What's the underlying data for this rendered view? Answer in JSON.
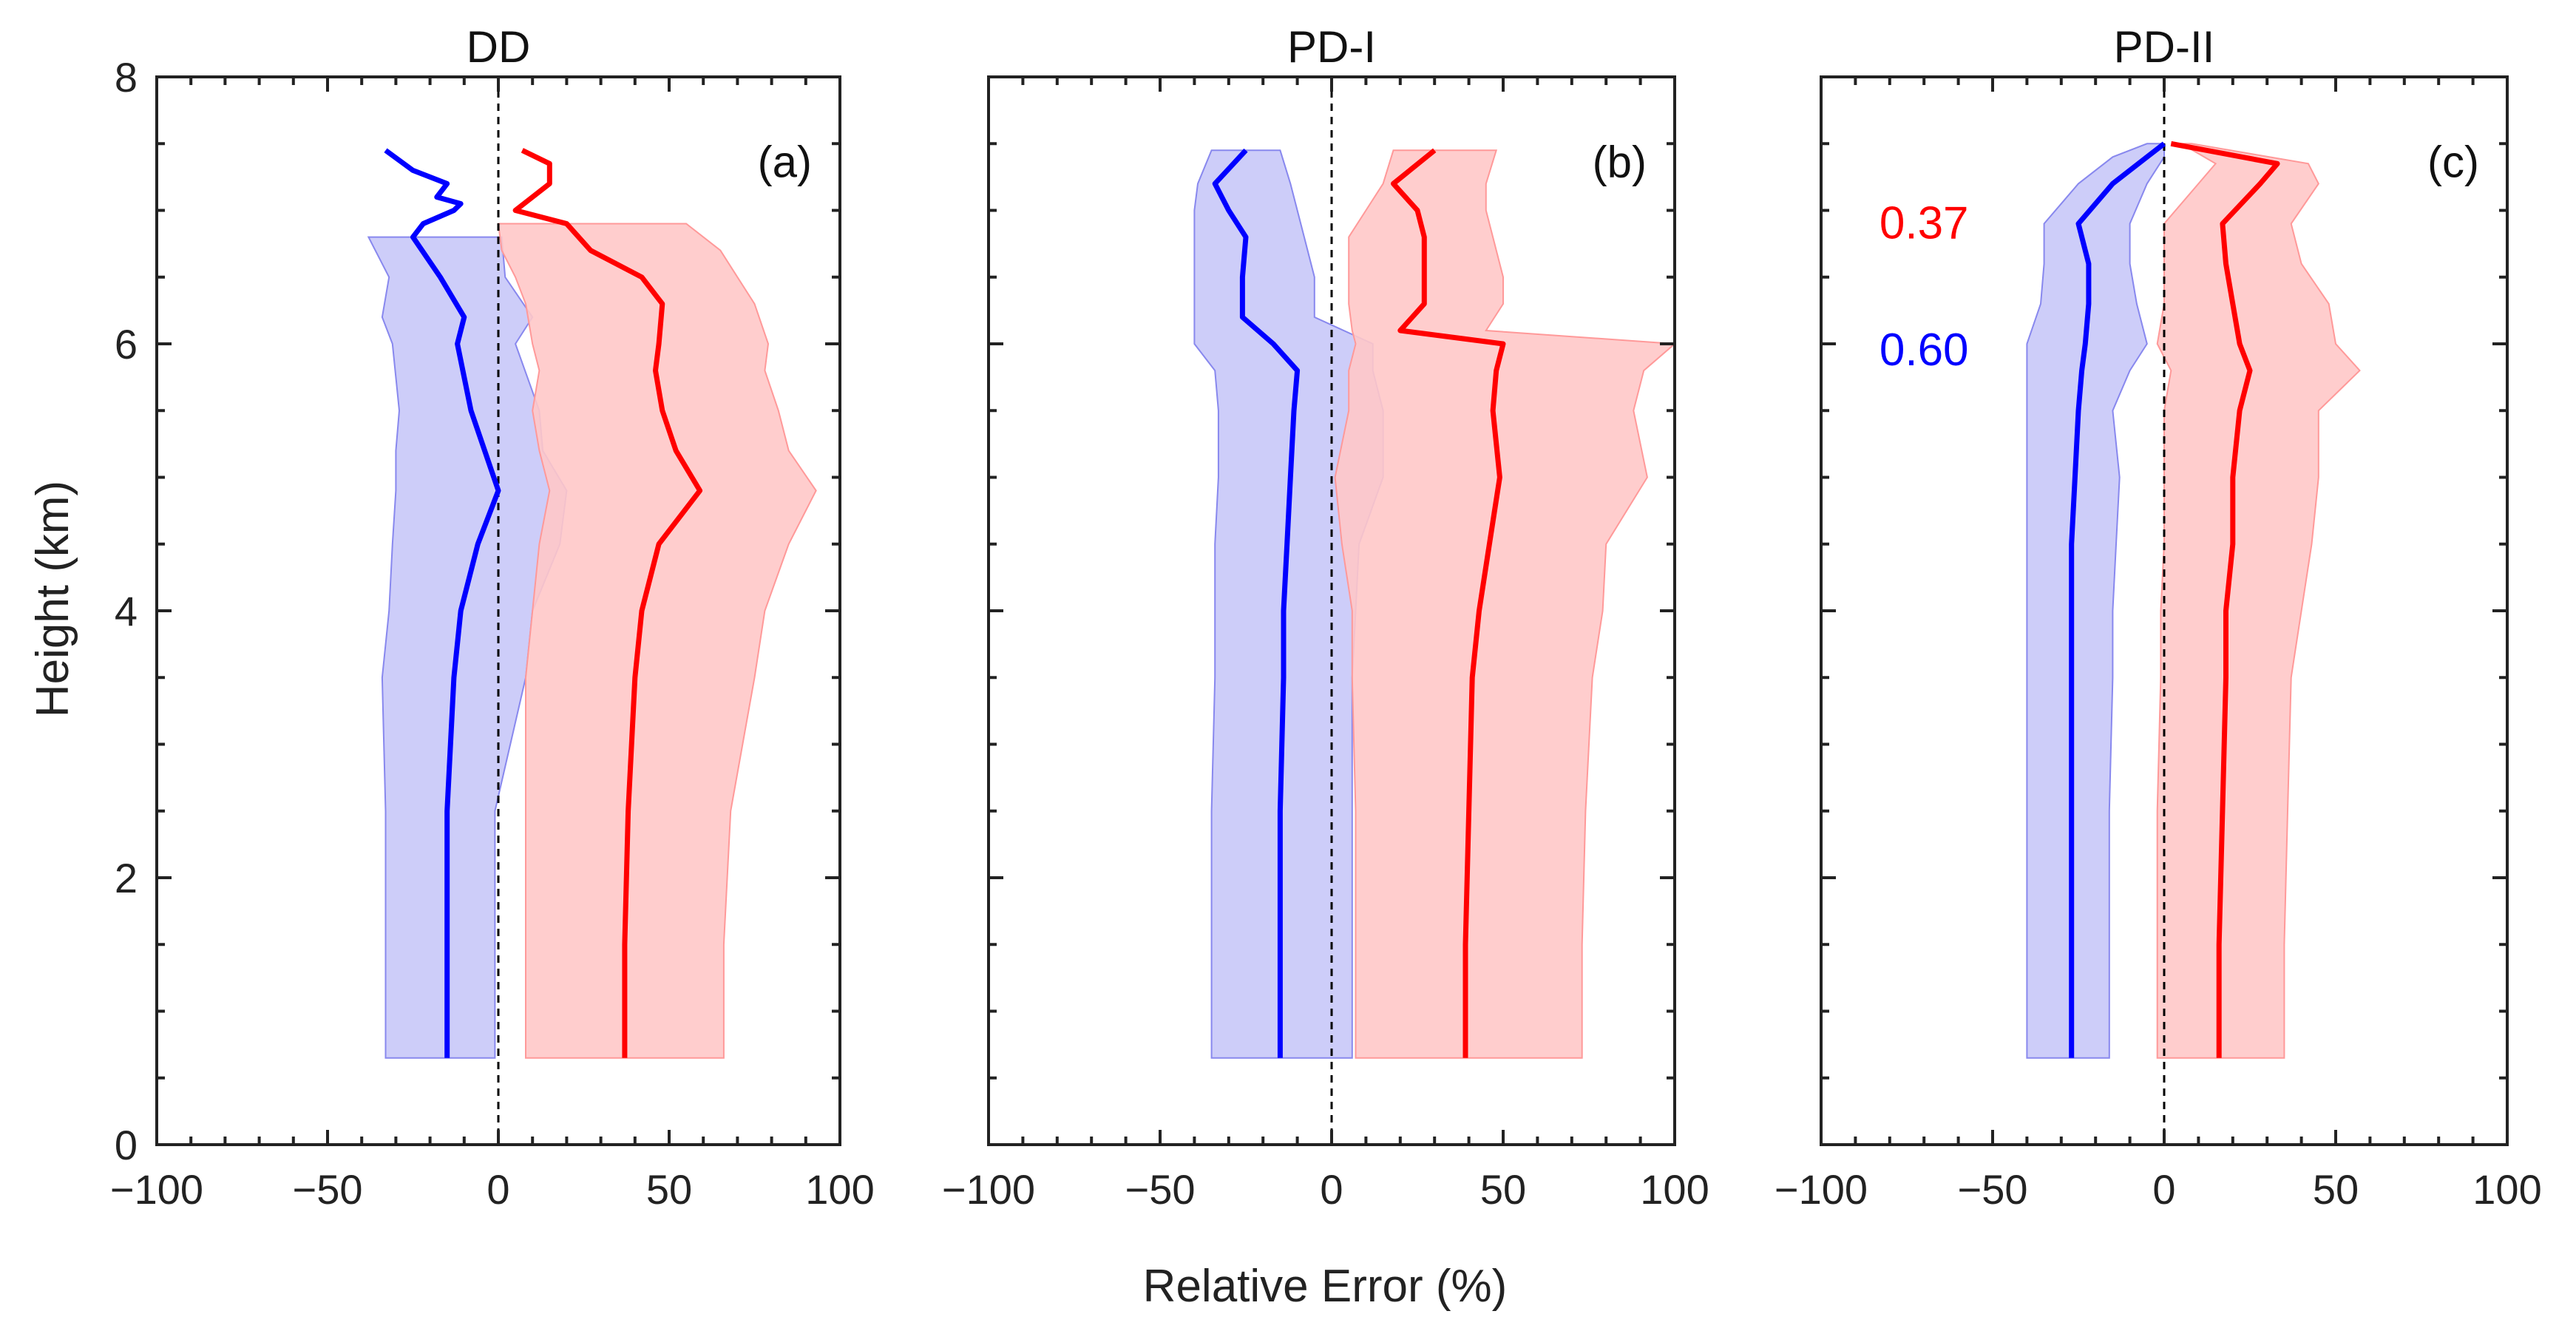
{
  "figure": {
    "xlabel": "Relative Error (%)",
    "ylabel": "Height (km)",
    "colors": {
      "blue": "#0000ff",
      "red": "#ff0000",
      "blue_fill": "#c8c8f8",
      "red_fill": "#ffc8c8",
      "axis": "#222222"
    }
  },
  "chart_data": [
    {
      "type": "line",
      "title": "DD",
      "panel_label": "(a)",
      "xlabel": "Relative Error (%)",
      "ylabel": "Height (km)",
      "xlim": [
        -100,
        100
      ],
      "ylim": [
        0,
        8
      ],
      "xticks": [
        -100,
        -50,
        0,
        50,
        100
      ],
      "xtick_labels": [
        "−100",
        "−50",
        "0",
        "50",
        "100"
      ],
      "yticks": [
        0,
        2,
        4,
        6,
        8
      ],
      "ytick_labels": [
        "0",
        "2",
        "4",
        "6",
        "8"
      ],
      "reference_line_x": 0,
      "annotations": [],
      "series": [
        {
          "name": "blue",
          "color": "#0000ff",
          "height": [
            0.65,
            1.5,
            2.5,
            3.5,
            4.0,
            4.5,
            4.9,
            5.2,
            5.5,
            6.0,
            6.2,
            6.5,
            6.8,
            6.9,
            7.0,
            7.05,
            7.1,
            7.2,
            7.3,
            7.45
          ],
          "mean": [
            -15,
            -15,
            -15,
            -13,
            -11,
            -6,
            0,
            -4,
            -8,
            -12,
            -10,
            -17,
            -25,
            -22,
            -13,
            -11,
            -18,
            -15,
            -25,
            -33
          ],
          "lower": [
            -33,
            -33,
            -33,
            -34,
            -32,
            -31,
            -30,
            -30,
            -29,
            -31,
            -34,
            -32,
            -38,
            null,
            null,
            null,
            null,
            null,
            null,
            null
          ],
          "upper": [
            -1,
            -1,
            -1,
            8,
            10,
            18,
            20,
            13,
            12,
            5,
            10,
            2,
            1,
            null,
            null,
            null,
            null,
            null,
            null,
            null
          ]
        },
        {
          "name": "red",
          "color": "#ff0000",
          "height": [
            0.65,
            1.5,
            2.5,
            3.5,
            4.0,
            4.5,
            4.9,
            5.2,
            5.5,
            5.8,
            6.0,
            6.3,
            6.5,
            6.7,
            6.9,
            7.0,
            7.2,
            7.35,
            7.45
          ],
          "mean": [
            37,
            37,
            38,
            40,
            42,
            47,
            59,
            52,
            48,
            46,
            47,
            48,
            42,
            27,
            20,
            5,
            15,
            15,
            7
          ],
          "lower": [
            8,
            8,
            8,
            8,
            10,
            12,
            15,
            12,
            10,
            12,
            10,
            8,
            5,
            1,
            0,
            null,
            null,
            null,
            null
          ],
          "upper": [
            66,
            66,
            68,
            75,
            78,
            85,
            93,
            85,
            82,
            78,
            79,
            75,
            70,
            65,
            55,
            null,
            null,
            null,
            null
          ]
        }
      ]
    },
    {
      "type": "line",
      "title": "PD-I",
      "panel_label": "(b)",
      "xlabel": "Relative Error (%)",
      "ylabel": "Height (km)",
      "xlim": [
        -100,
        100
      ],
      "ylim": [
        0,
        8
      ],
      "xticks": [
        -100,
        -50,
        0,
        50,
        100
      ],
      "xtick_labels": [
        "−100",
        "−50",
        "0",
        "50",
        "100"
      ],
      "yticks": [
        0,
        2,
        4,
        6,
        8
      ],
      "ytick_labels": [
        "0",
        "2",
        "4",
        "6",
        "8"
      ],
      "reference_line_x": 0,
      "annotations": [],
      "series": [
        {
          "name": "blue",
          "color": "#0000ff",
          "height": [
            0.65,
            1.5,
            2.5,
            3.5,
            4.0,
            4.5,
            5.0,
            5.5,
            5.8,
            6.0,
            6.2,
            6.5,
            6.8,
            7.0,
            7.2,
            7.45
          ],
          "mean": [
            -15,
            -15,
            -15,
            -14,
            -14,
            -13,
            -12,
            -11,
            -10,
            -17,
            -26,
            -26,
            -25,
            -30,
            -34,
            -25
          ],
          "lower": [
            -35,
            -35,
            -35,
            -34,
            -34,
            -34,
            -33,
            -33,
            -34,
            -40,
            -40,
            -40,
            -40,
            -40,
            -39,
            -35
          ],
          "upper": [
            6,
            6,
            6,
            6,
            7,
            8,
            15,
            15,
            12,
            12,
            -5,
            -5,
            -8,
            -10,
            -12,
            -15
          ]
        },
        {
          "name": "red",
          "color": "#ff0000",
          "height": [
            0.65,
            1.5,
            2.5,
            3.5,
            4.0,
            4.5,
            5.0,
            5.5,
            5.8,
            6.0,
            6.1,
            6.3,
            6.5,
            6.8,
            7.0,
            7.2,
            7.45
          ],
          "mean": [
            39,
            39,
            40,
            41,
            43,
            46,
            49,
            47,
            48,
            50,
            20,
            27,
            27,
            27,
            25,
            18,
            30
          ],
          "lower": [
            7,
            7,
            7,
            6,
            6,
            3,
            1,
            5,
            5,
            7,
            6,
            5,
            5,
            5,
            10,
            15,
            18
          ],
          "upper": [
            73,
            73,
            74,
            76,
            79,
            80,
            92,
            88,
            91,
            100,
            45,
            50,
            50,
            47,
            45,
            45,
            48
          ]
        }
      ]
    },
    {
      "type": "line",
      "title": "PD-II",
      "panel_label": "(c)",
      "xlabel": "Relative Error (%)",
      "ylabel": "Height (km)",
      "xlim": [
        -100,
        100
      ],
      "ylim": [
        0,
        8
      ],
      "xticks": [
        -100,
        -50,
        0,
        50,
        100
      ],
      "xtick_labels": [
        "−100",
        "−50",
        "0",
        "50",
        "100"
      ],
      "yticks": [
        0,
        2,
        4,
        6,
        8
      ],
      "ytick_labels": [
        "0",
        "2",
        "4",
        "6",
        "8"
      ],
      "reference_line_x": 0,
      "annotations": [
        {
          "text": "0.37",
          "color": "#ff0000",
          "x": -70,
          "y": 6.9
        },
        {
          "text": "0.60",
          "color": "#0000ff",
          "x": -70,
          "y": 5.95
        }
      ],
      "series": [
        {
          "name": "blue",
          "color": "#0000ff",
          "height": [
            0.65,
            1.5,
            2.5,
            3.5,
            4.0,
            4.5,
            5.0,
            5.5,
            5.8,
            6.0,
            6.3,
            6.6,
            6.9,
            7.2,
            7.4,
            7.5
          ],
          "mean": [
            -27,
            -27,
            -27,
            -27,
            -27,
            -27,
            -26,
            -25,
            -24,
            -23,
            -22,
            -22,
            -25,
            -15,
            -5,
            0
          ],
          "lower": [
            -40,
            -40,
            -40,
            -40,
            -40,
            -40,
            -40,
            -40,
            -40,
            -40,
            -36,
            -35,
            -35,
            -25,
            -15,
            -5
          ],
          "upper": [
            -16,
            -16,
            -16,
            -15,
            -15,
            -14,
            -13,
            -15,
            -10,
            -5,
            -8,
            -10,
            -10,
            -5,
            0,
            0
          ]
        },
        {
          "name": "red",
          "color": "#ff0000",
          "height": [
            0.65,
            1.5,
            2.5,
            3.5,
            4.0,
            4.5,
            5.0,
            5.5,
            5.8,
            6.0,
            6.3,
            6.6,
            6.9,
            7.2,
            7.35,
            7.5
          ],
          "mean": [
            16,
            16,
            17,
            18,
            18,
            20,
            20,
            22,
            25,
            22,
            20,
            18,
            17,
            28,
            33,
            2
          ],
          "lower": [
            -2,
            -2,
            -2,
            -1,
            -1,
            0,
            0,
            0,
            2,
            -2,
            0,
            0,
            0,
            10,
            15,
            5
          ],
          "upper": [
            35,
            35,
            36,
            37,
            40,
            43,
            45,
            45,
            57,
            50,
            48,
            40,
            37,
            45,
            42,
            8
          ]
        }
      ]
    }
  ]
}
